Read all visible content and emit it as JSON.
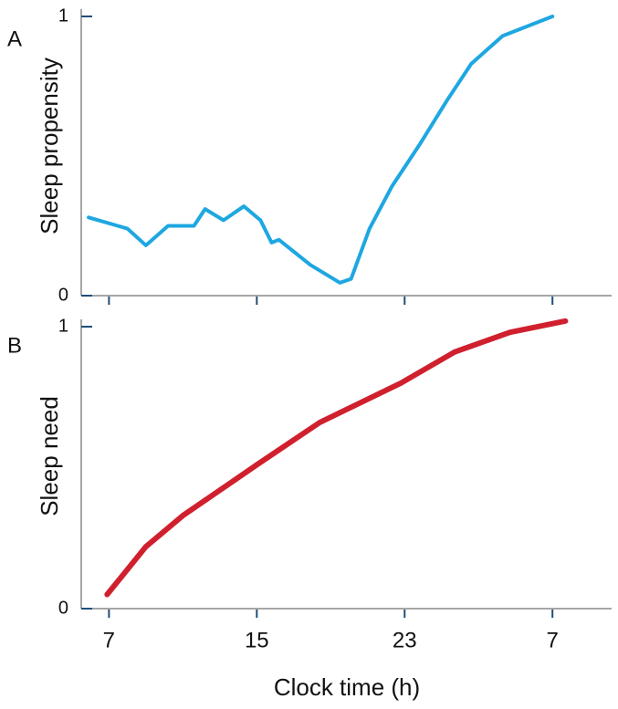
{
  "chart_data": [
    {
      "type": "line",
      "panel": "A",
      "ylabel": "Sleep propensity",
      "x": [
        5.9,
        8.0,
        9.0,
        10.2,
        11.6,
        12.2,
        13.2,
        14.3,
        15.2,
        15.8,
        16.2,
        17.9,
        19.5,
        20.1,
        21.1,
        22.3,
        23.8,
        25.3,
        26.6,
        28.3,
        31.0
      ],
      "series": [
        {
          "color": "#1ea7e1",
          "values": [
            0.28,
            0.24,
            0.18,
            0.25,
            0.25,
            0.31,
            0.27,
            0.32,
            0.27,
            0.19,
            0.2,
            0.11,
            0.046,
            0.06,
            0.24,
            0.39,
            0.54,
            0.7,
            0.83,
            0.93,
            1.0
          ]
        }
      ],
      "xlim": [
        5.5,
        34.2
      ],
      "ylim": [
        0,
        1
      ],
      "yticks": [
        0,
        1
      ]
    },
    {
      "type": "line",
      "panel": "B",
      "ylabel": "Sleep need",
      "xlabel": "Clock time (h)",
      "x": [
        6.9,
        9.0,
        11.0,
        15.0,
        18.4,
        22.8,
        25.7,
        28.7,
        31.7
      ],
      "series": [
        {
          "color": "#d0202e",
          "values": [
            0.05,
            0.22,
            0.33,
            0.51,
            0.66,
            0.8,
            0.91,
            0.98,
            1.02
          ]
        }
      ],
      "xlim": [
        5.5,
        34.2
      ],
      "ylim": [
        0,
        1
      ],
      "yticks": [
        0,
        1
      ],
      "xticks": [
        7,
        15,
        23,
        {
          "value": 31,
          "label": "7"
        }
      ]
    }
  ]
}
